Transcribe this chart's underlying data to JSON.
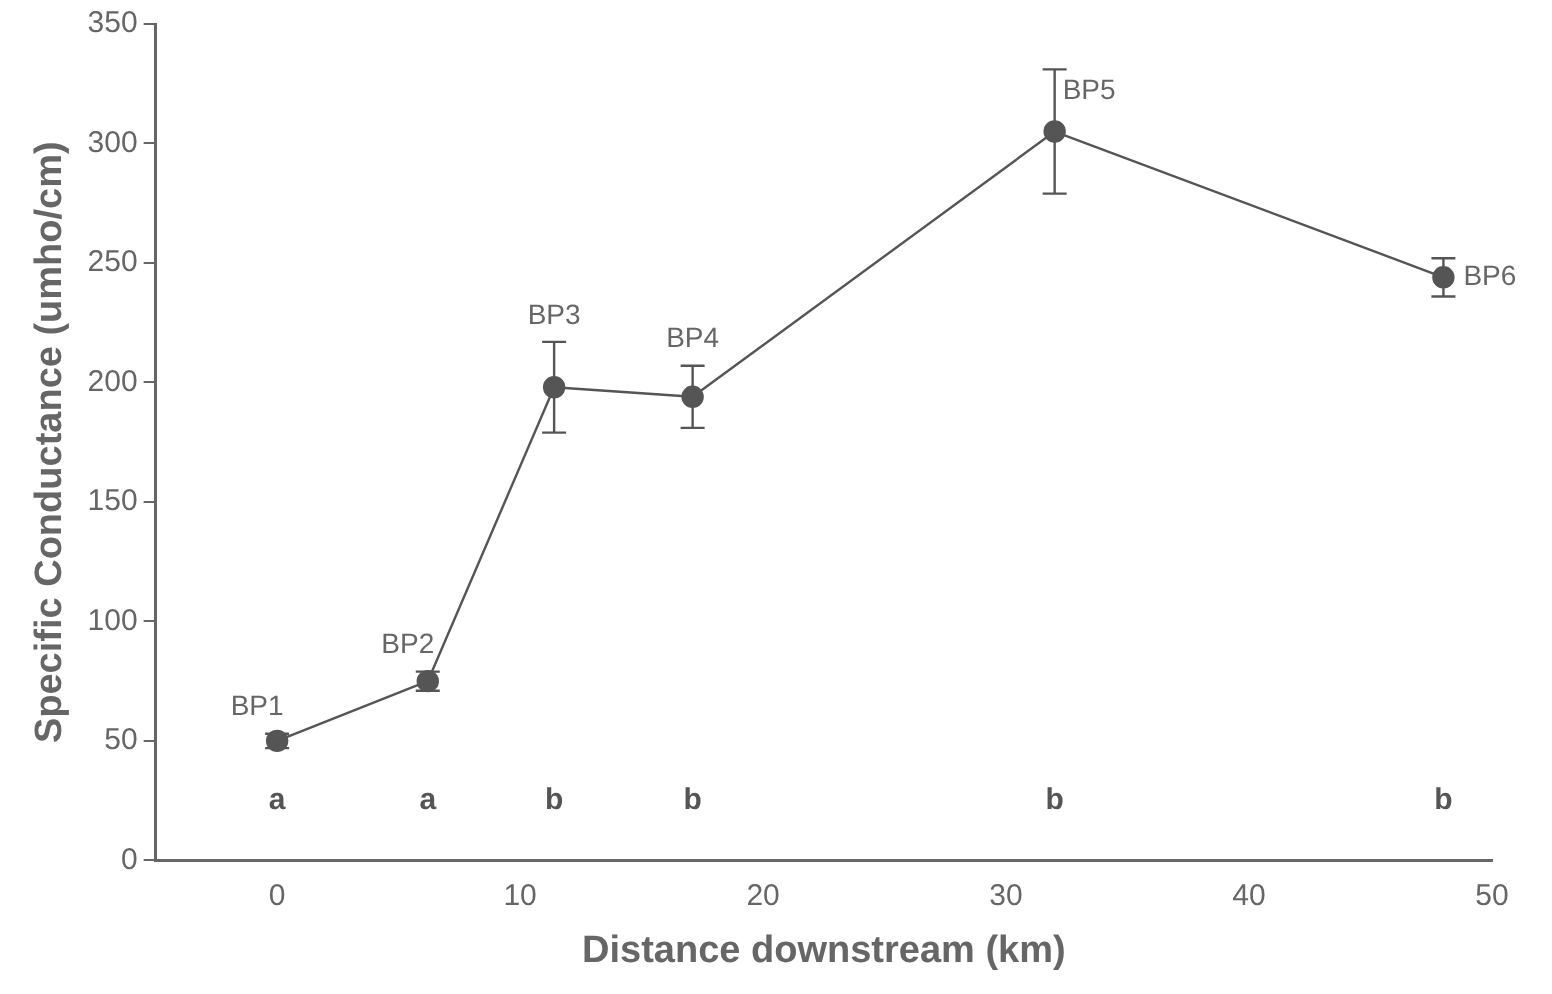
{
  "chart_data": {
    "type": "line",
    "xlabel": "Distance downstream (km)",
    "ylabel": "Specific Conductance (umho/cm)",
    "x": [
      0,
      6.2,
      11.4,
      17.1,
      32,
      48
    ],
    "series": [
      {
        "color": "#555555",
        "values": [
          50,
          75,
          198,
          194,
          305,
          244
        ],
        "errors": [
          3,
          4,
          19,
          13,
          26,
          8
        ]
      }
    ],
    "xlim": [
      -5,
      50
    ],
    "xticks": [
      0,
      10,
      20,
      30,
      40,
      50
    ],
    "ylim": [
      0,
      350
    ],
    "yticks": [
      0,
      50,
      100,
      150,
      200,
      250,
      300,
      350
    ],
    "marker": "circle",
    "line_style": "solid",
    "grid": false,
    "legend": false,
    "annotations": [
      {
        "text": "BP1",
        "x": 0,
        "y": 50
      },
      {
        "text": "BP2",
        "x": 6.2,
        "y": 75
      },
      {
        "text": "BP3",
        "x": 11.4,
        "y": 198
      },
      {
        "text": "BP4",
        "x": 17.1,
        "y": 194
      },
      {
        "text": "BP5",
        "x": 32,
        "y": 305
      },
      {
        "text": "BP6",
        "x": 48,
        "y": 244
      },
      "a",
      "a",
      "b",
      "b",
      "b",
      "b"
    ]
  }
}
